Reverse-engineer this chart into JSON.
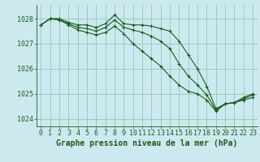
{
  "background_color": "#cde9f0",
  "grid_color": "#99ccbb",
  "line_color": "#1a5c1a",
  "marker_color": "#1a5c1a",
  "xlabel": "Graphe pression niveau de la mer (hPa)",
  "xlabel_fontsize": 7,
  "tick_fontsize": 6,
  "ylim": [
    1023.7,
    1028.55
  ],
  "xlim": [
    -0.5,
    23.5
  ],
  "xticks": [
    0,
    1,
    2,
    3,
    4,
    5,
    6,
    7,
    8,
    9,
    10,
    11,
    12,
    13,
    14,
    15,
    16,
    17,
    18,
    19,
    20,
    21,
    22,
    23
  ],
  "yticks": [
    1024,
    1025,
    1026,
    1027,
    1028
  ],
  "series": [
    [
      1027.75,
      1028.0,
      1028.0,
      1027.85,
      1027.75,
      1027.75,
      1027.65,
      1027.8,
      1028.15,
      1027.8,
      1027.75,
      1027.75,
      1027.7,
      1027.6,
      1027.5,
      1027.1,
      1026.55,
      1026.0,
      1025.3,
      1024.4,
      1024.6,
      1024.65,
      1024.85,
      1025.0
    ],
    [
      1027.75,
      1028.0,
      1027.95,
      1027.75,
      1027.55,
      1027.45,
      1027.35,
      1027.45,
      1027.7,
      1027.4,
      1027.0,
      1026.7,
      1026.4,
      1026.1,
      1025.7,
      1025.35,
      1025.1,
      1025.0,
      1024.75,
      1024.3,
      1024.6,
      1024.65,
      1024.75,
      1024.85
    ],
    [
      1027.75,
      1028.0,
      1027.95,
      1027.8,
      1027.65,
      1027.6,
      1027.5,
      1027.65,
      1027.95,
      1027.65,
      1027.55,
      1027.45,
      1027.3,
      1027.1,
      1026.8,
      1026.2,
      1025.7,
      1025.35,
      1024.95,
      1024.35,
      1024.6,
      1024.65,
      1024.8,
      1024.95
    ]
  ]
}
